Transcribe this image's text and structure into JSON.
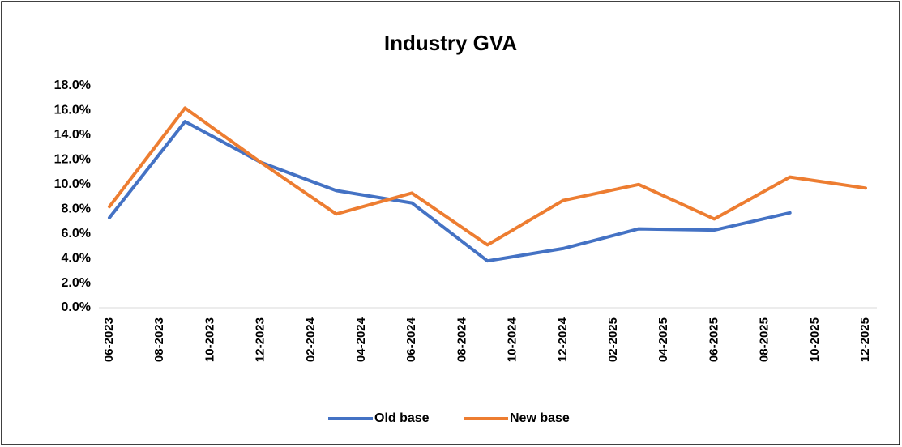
{
  "chart_data": {
    "type": "line",
    "title": "Industry GVA",
    "x": [
      "06-2023",
      "09-2023",
      "12-2023",
      "03-2024",
      "06-2024",
      "09-2024",
      "12-2024",
      "03-2025",
      "06-2025",
      "09-2025",
      "12-2025"
    ],
    "series": [
      {
        "name": "Old base",
        "color": "#4472c4",
        "values": [
          7.3,
          15.1,
          11.8,
          9.5,
          8.5,
          3.8,
          4.8,
          6.4,
          6.3,
          7.7,
          null
        ]
      },
      {
        "name": "New base",
        "color": "#ed7d31",
        "values": [
          8.2,
          16.2,
          11.8,
          7.6,
          9.3,
          5.1,
          8.7,
          10.0,
          7.2,
          10.6,
          9.7
        ]
      }
    ],
    "xlim": [
      "06-2023",
      "12-2025"
    ],
    "xticks": [
      "06-2023",
      "08-2023",
      "10-2023",
      "12-2023",
      "02-2024",
      "04-2024",
      "06-2024",
      "08-2024",
      "10-2024",
      "12-2024",
      "02-2025",
      "04-2025",
      "06-2025",
      "08-2025",
      "10-2025",
      "12-2025"
    ],
    "ylim": [
      0,
      18
    ],
    "yticks": [
      {
        "value": 0,
        "label": "0.0%"
      },
      {
        "value": 2,
        "label": "2.0%"
      },
      {
        "value": 4,
        "label": "4.0%"
      },
      {
        "value": 6,
        "label": "6.0%"
      },
      {
        "value": 8,
        "label": "8.0%"
      },
      {
        "value": 10,
        "label": "10.0%"
      },
      {
        "value": 12,
        "label": "12.0%"
      },
      {
        "value": 14,
        "label": "14.0%"
      },
      {
        "value": 16,
        "label": "16.0%"
      },
      {
        "value": 18,
        "label": "18.0%"
      }
    ],
    "grid": false,
    "legend": "bottom"
  }
}
